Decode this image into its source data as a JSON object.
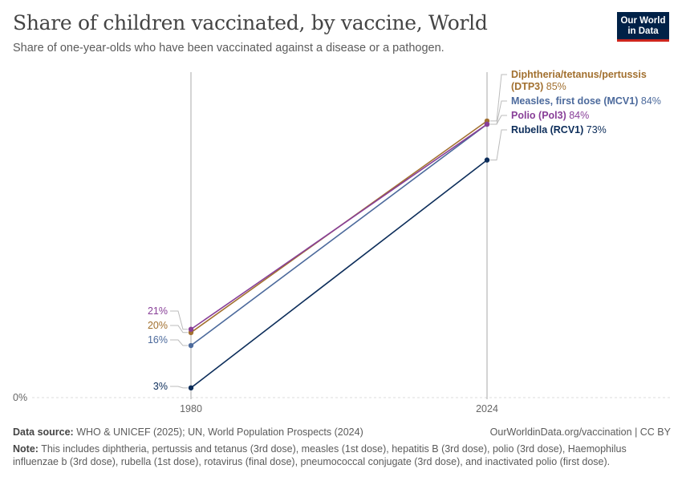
{
  "header": {
    "title": "Share of children vaccinated, by vaccine, World",
    "subtitle": "Share of one-year-olds who have been vaccinated against a disease or a pathogen."
  },
  "logo": {
    "line1": "Our World",
    "line2": "in Data"
  },
  "chart_data": {
    "type": "line",
    "x": [
      1980,
      2024
    ],
    "ylim": [
      0,
      100
    ],
    "y_ticks": [
      {
        "value": 0,
        "label": "0%"
      }
    ],
    "x_ticks": [
      {
        "value": 1980,
        "label": "1980"
      },
      {
        "value": 2024,
        "label": "2024"
      }
    ],
    "series": [
      {
        "name": "Diphtheria/tetanus/pertussis (DTP3)",
        "label_line1": "Diphtheria/tetanus/pertussis",
        "label_line2": "(DTP3)",
        "values": [
          20,
          85
        ],
        "start_label": "20%",
        "end_label": "85%",
        "color": "#a2702f"
      },
      {
        "name": "Measles, first dose (MCV1)",
        "values": [
          16,
          84
        ],
        "start_label": "16%",
        "end_label": "84%",
        "color": "#4c6a9c"
      },
      {
        "name": "Polio (Pol3)",
        "values": [
          21,
          84
        ],
        "start_label": "21%",
        "end_label": "84%",
        "color": "#883f98"
      },
      {
        "name": "Rubella (RCV1)",
        "values": [
          3,
          73
        ],
        "start_label": "3%",
        "end_label": "73%",
        "color": "#0c2d5a"
      }
    ]
  },
  "footer": {
    "source_label": "Data source:",
    "source_text": "WHO & UNICEF (2025); UN, World Population Prospects (2024)",
    "credit": "OurWorldinData.org/vaccination | CC BY",
    "note_label": "Note:",
    "note_text": "This includes diphtheria, pertussis and tetanus (3rd dose), measles (1st dose), hepatitis B (3rd dose), polio (3rd dose), Haemophilus influenzae b (3rd dose), rubella (1st dose), rotavirus (final dose), pneumococcal conjugate (3rd dose), and inactivated polio (first dose)."
  }
}
